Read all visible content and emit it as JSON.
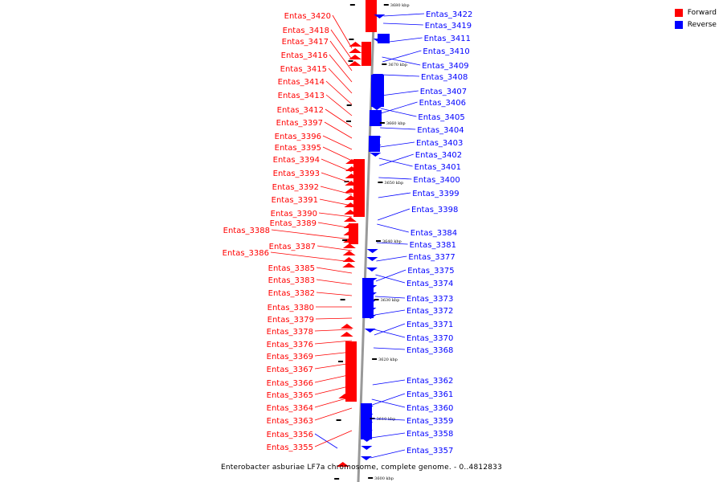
{
  "caption": "Enterobacter asburiae LF7a chromosome, complete genome. - 0..4812833",
  "colors": {
    "forward": "#ff0000",
    "reverse": "#0000ff",
    "backbone": "#999999"
  },
  "legend": [
    {
      "label": "Forward",
      "color": "#ff0000"
    },
    {
      "label": "Reverse",
      "color": "#0000ff"
    }
  ],
  "ticks": [
    "3680 kbp",
    "3670 kbp",
    "3660 kbp",
    "3650 kbp",
    "3640 kbp",
    "3630 kbp",
    "3620 kbp",
    "3610 kbp",
    "3600 kbp"
  ],
  "forward_genes": [
    "Entas_3420",
    "Entas_3418",
    "Entas_3417",
    "Entas_3416",
    "Entas_3415",
    "Entas_3414",
    "Entas_3413",
    "Entas_3412",
    "Entas_3397",
    "Entas_3396",
    "Entas_3395",
    "Entas_3394",
    "Entas_3393",
    "Entas_3392",
    "Entas_3391",
    "Entas_3390",
    "Entas_3389",
    "Entas_3388",
    "Entas_3387",
    "Entas_3386",
    "Entas_3385",
    "Entas_3383",
    "Entas_3382",
    "Entas_3380",
    "Entas_3379",
    "Entas_3378",
    "Entas_3376",
    "Entas_3369",
    "Entas_3367",
    "Entas_3366",
    "Entas_3365",
    "Entas_3364",
    "Entas_3363",
    "Entas_3356",
    "Entas_3355"
  ],
  "reverse_genes": [
    "Entas_3422",
    "Entas_3419",
    "Entas_3411",
    "Entas_3410",
    "Entas_3409",
    "Entas_3408",
    "Entas_3407",
    "Entas_3406",
    "Entas_3405",
    "Entas_3404",
    "Entas_3403",
    "Entas_3402",
    "Entas_3401",
    "Entas_3400",
    "Entas_3399",
    "Entas_3398",
    "Entas_3384",
    "Entas_3381",
    "Entas_3377",
    "Entas_3375",
    "Entas_3374",
    "Entas_3373",
    "Entas_3372",
    "Entas_3371",
    "Entas_3370",
    "Entas_3368",
    "Entas_3362",
    "Entas_3361",
    "Entas_3360",
    "Entas_3359",
    "Entas_3358",
    "Entas_3357"
  ]
}
